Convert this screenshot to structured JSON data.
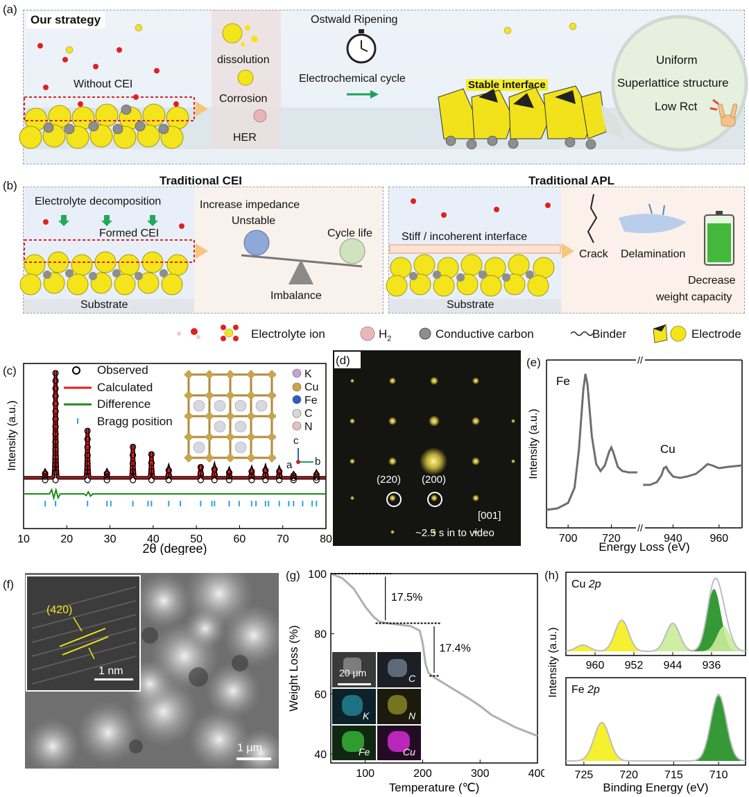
{
  "panels": {
    "a": {
      "label": "(a)",
      "strategy_title": "Our strategy",
      "without_cei": "Without CEI",
      "dissolution": "dissolution",
      "corrosion": "Corrosion",
      "her": "HER",
      "ostwald": "Ostwald Ripening",
      "electrochem": "Electrochemical cycle",
      "stable_interface": "Stable interface",
      "uniform": "Uniform",
      "superlattice": "Superlattice structure",
      "low_rct": "Low Rct"
    },
    "b": {
      "label": "(b)",
      "traditional_cei": "Traditional CEI",
      "electrolyte_decomp": "Electrolyte decomposition",
      "formed_cei": "Formed CEI",
      "substrate": "Substrate",
      "increase_impedance": "Increase impedance",
      "unstable": "Unstable",
      "cycle_life": "Cycle life",
      "imbalance": "Imbalance",
      "traditional_apl": "Traditional APL",
      "stiff_interface": "Stiff / incoherent interface",
      "substrate2": "Substrate",
      "crack": "Crack",
      "delamination": "Delamination",
      "decrease1": "Decrease",
      "decrease2": "weight capacity"
    },
    "legend": {
      "electrolyte_ion": "Electrolyte ion",
      "h2": "H",
      "h2_sub": "2",
      "carbon": "Conductive carbon",
      "binder": "Binder",
      "electrode": "Electrode"
    },
    "c": {
      "label": "(c)",
      "legend": [
        "Observed",
        "Calculated",
        "Difference",
        "Bragg position"
      ],
      "atoms": [
        "K",
        "Cu",
        "Fe",
        "C",
        "N"
      ],
      "axis_c": "c",
      "axis_a": "a",
      "axis_b": "b"
    },
    "d": {
      "label": "(d)",
      "spot1": "(220)",
      "spot2": "(200)",
      "zone": "[001]",
      "caption": "~2.5 s in to video"
    },
    "e": {
      "label": "(e)",
      "fe": "Fe",
      "cu": "Cu"
    },
    "f": {
      "label": "(f)",
      "plane": "(420)",
      "inset_scale": "1 nm",
      "scale": "1 μm"
    },
    "g": {
      "label": "(g)",
      "step1": "17.5%",
      "step2": "17.4%",
      "eds_scale": "20 μm",
      "eds": [
        "C",
        "K",
        "N",
        "Fe",
        "Cu"
      ]
    },
    "h": {
      "label": "(h)",
      "top_el": "Cu",
      "top_orb": "2p",
      "bot_el": "Fe",
      "bot_orb": "2p"
    }
  },
  "chart_data": [
    {
      "id": "c",
      "type": "line",
      "xlabel": "2θ (degree)",
      "ylabel": "Intensity (a.u.)",
      "xlim": [
        10,
        80
      ],
      "xticks": [
        10,
        20,
        30,
        40,
        50,
        60,
        70,
        80
      ],
      "x": [
        15,
        17.4,
        24.8,
        29.3,
        35.3,
        39.6,
        43.6,
        51.0,
        54.2,
        57.6,
        62.8,
        66.0,
        69.2,
        72.5,
        77.8
      ],
      "series": [
        {
          "name": "Observed",
          "values": [
            0.06,
            1.0,
            0.46,
            0.06,
            0.31,
            0.24,
            0.09,
            0.12,
            0.1,
            0.07,
            0.08,
            0.09,
            0.08,
            0.04,
            0.05
          ]
        }
      ],
      "bragg": [
        15,
        17.4,
        24.8,
        29.3,
        30.2,
        35.3,
        38.8,
        39.6,
        43.6,
        46.3,
        51.0,
        53.6,
        54.2,
        57.6,
        59.9,
        62.8,
        63.8,
        66.0,
        66.7,
        69.2,
        71.4,
        72.5,
        74.6,
        76.8,
        77.8
      ]
    },
    {
      "id": "e",
      "type": "line",
      "xlabel": "Energy Loss (eV)",
      "ylabel": "Intensity (a.u.)",
      "xticks": [
        700,
        720,
        940,
        960
      ],
      "series": [
        {
          "name": "Fe",
          "x": [
            690,
            695,
            700,
            703,
            705,
            707,
            708,
            709,
            711,
            713,
            715,
            717,
            719,
            720,
            721,
            723,
            725,
            728,
            732
          ],
          "values": [
            0.02,
            0.03,
            0.07,
            0.18,
            0.45,
            0.88,
            1.0,
            0.92,
            0.55,
            0.35,
            0.3,
            0.34,
            0.44,
            0.47,
            0.43,
            0.33,
            0.3,
            0.29,
            0.29
          ]
        },
        {
          "name": "Cu",
          "x": [
            927,
            930,
            933,
            935,
            936,
            937,
            938,
            940,
            943,
            946,
            950,
            953,
            955,
            957,
            960,
            964,
            970
          ],
          "values": [
            0.2,
            0.2,
            0.22,
            0.27,
            0.32,
            0.33,
            0.3,
            0.26,
            0.25,
            0.26,
            0.28,
            0.32,
            0.35,
            0.34,
            0.32,
            0.33,
            0.34
          ]
        }
      ]
    },
    {
      "id": "g",
      "type": "line",
      "xlabel": "Temperature (℃)",
      "ylabel": "Weight Loss (%)",
      "xlim": [
        40,
        400
      ],
      "ylim": [
        37,
        100
      ],
      "xticks": [
        100,
        200,
        300,
        400
      ],
      "yticks": [
        40,
        60,
        80,
        100
      ],
      "x": [
        40,
        60,
        80,
        100,
        115,
        125,
        140,
        160,
        180,
        195,
        200,
        205,
        210,
        220,
        250,
        280,
        300,
        320,
        340,
        360,
        380,
        400
      ],
      "values": [
        100,
        98.5,
        95,
        89,
        85.5,
        84,
        83.5,
        83,
        82.5,
        81,
        77,
        70,
        67,
        65.5,
        62,
        58.5,
        56,
        53,
        51,
        49,
        47.5,
        46
      ]
    },
    {
      "id": "h-top",
      "type": "area",
      "xlabel": "Binding Energy (eV)",
      "ylabel": "Intensity (a.u.)",
      "xticks": [
        960,
        952,
        944,
        936
      ],
      "series": [
        {
          "name": "",
          "peak": 962.5,
          "height": 0.1
        },
        {
          "name": "",
          "peak": 954.5,
          "height": 0.5
        },
        {
          "name": "",
          "peak": 944,
          "height": 0.45
        },
        {
          "name": "",
          "peak": 935.5,
          "height": 1.0
        },
        {
          "name": "",
          "peak": 933.5,
          "height": 0.4
        }
      ]
    },
    {
      "id": "h-bot",
      "type": "area",
      "xlabel": "Binding Energy (eV)",
      "xticks": [
        725,
        720,
        715,
        710
      ],
      "series": [
        {
          "name": "",
          "peak": 723,
          "height": 0.58
        },
        {
          "name": "",
          "peak": 710,
          "height": 1.0
        }
      ]
    }
  ],
  "colors": {
    "observed": "#000000",
    "calculated": "#e8191b",
    "difference": "#1a8c1a",
    "bragg": "#29a3d6",
    "eels": "#6e6e6e",
    "tga": "#b0b0b0",
    "xps_green": "#1f8f1f",
    "xps_yellow": "#f4ee1a",
    "xps_lightgreen": "#c9ec9a"
  }
}
